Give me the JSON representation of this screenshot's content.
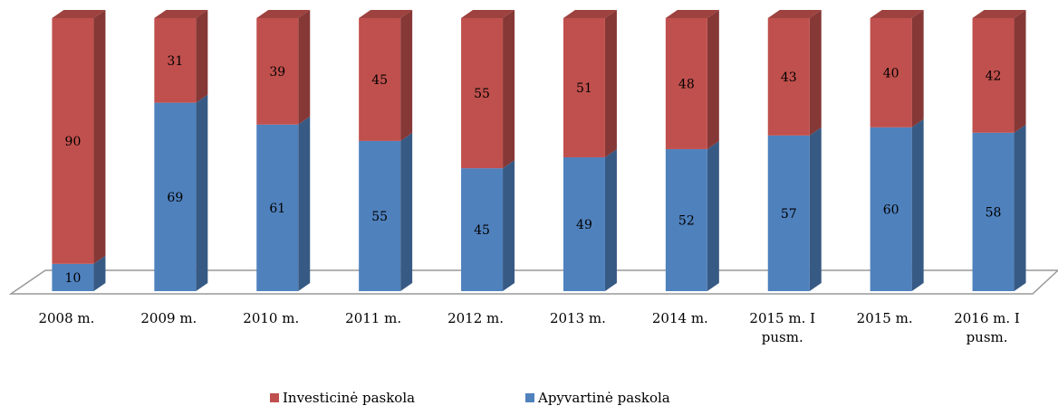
{
  "chart_data": {
    "type": "bar3d_stacked",
    "categories": [
      "2008 m.",
      "2009 m.",
      "2010 m.",
      "2011 m.",
      "2012 m.",
      "2013 m.",
      "2014 m.",
      "2015 m. I pusm.",
      "2015 m.",
      "2016 m. I pusm."
    ],
    "series": [
      {
        "name": "Investicinė paskola",
        "color": "#c0504d",
        "values": [
          90,
          31,
          39,
          45,
          55,
          51,
          48,
          43,
          40,
          42
        ]
      },
      {
        "name": "Apyvartinė paskola",
        "color": "#4f81bd",
        "values": [
          10,
          69,
          61,
          55,
          45,
          49,
          52,
          57,
          60,
          58
        ]
      }
    ],
    "legend": "bottom"
  }
}
